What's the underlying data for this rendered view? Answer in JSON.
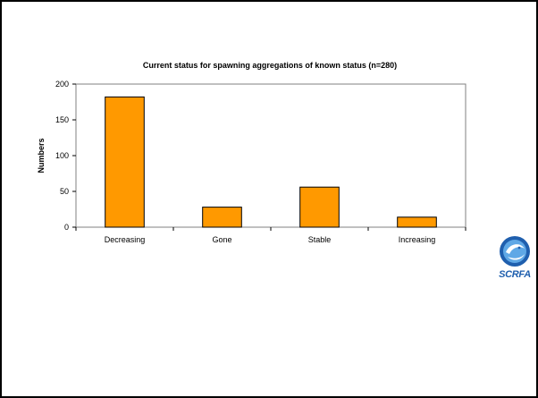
{
  "slide": {
    "logo_text": "SCRFA"
  },
  "colors": {
    "bar_fill": "#ff9900",
    "bar_stroke": "#000000",
    "plot_border": "#808080",
    "logo_blue": "#1f5fae"
  },
  "chart_data": {
    "type": "bar",
    "title": "Current status for spawning aggregations of known status (n=280)",
    "xlabel": "",
    "ylabel": "Numbers",
    "categories": [
      "Decreasing",
      "Gone",
      "Stable",
      "Increasing"
    ],
    "values": [
      182,
      28,
      56,
      14
    ],
    "ylim": [
      0,
      200
    ],
    "yticks": [
      0,
      50,
      100,
      150,
      200
    ],
    "grid": false,
    "legend": "none"
  }
}
